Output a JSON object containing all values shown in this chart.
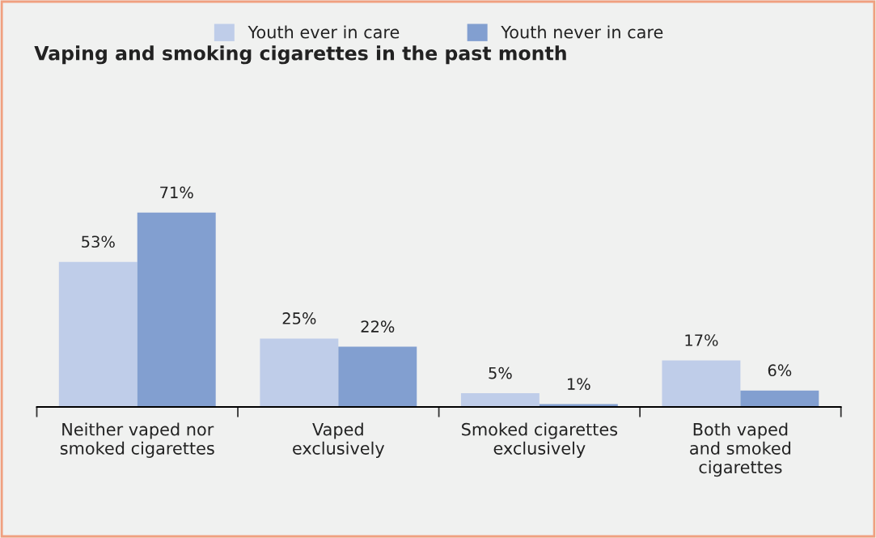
{
  "chart_data": {
    "type": "bar",
    "title": "Vaping and smoking cigarettes in the past month",
    "categories": [
      "Neither vaped nor\nsmoked cigarettes",
      "Vaped\nexclusively",
      "Smoked cigarettes\nexclusively",
      "Both vaped\nand smoked\ncigarettes"
    ],
    "series": [
      {
        "name": "Youth ever in care",
        "color": "#bfcde9",
        "values": [
          53,
          25,
          5,
          17
        ],
        "value_labels": [
          "53%",
          "25%",
          "5%",
          "17%"
        ]
      },
      {
        "name": "Youth never in care",
        "color": "#829fd0",
        "values": [
          71,
          22,
          1,
          6
        ],
        "value_labels": [
          "71%",
          "22%",
          "1%",
          "6%"
        ]
      }
    ],
    "legend": "top",
    "grid": false
  }
}
